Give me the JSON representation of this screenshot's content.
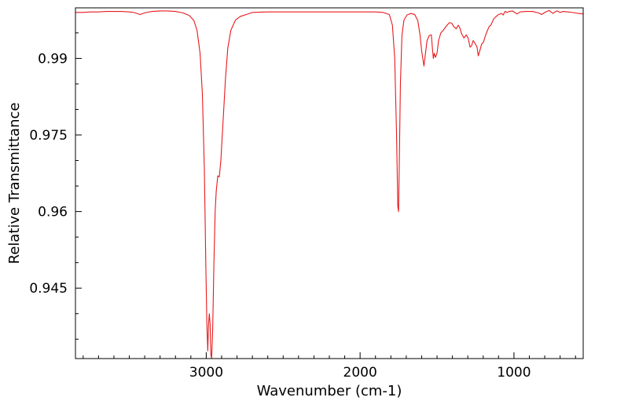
{
  "chart_data": {
    "type": "line",
    "title": "",
    "xlabel": "Wavenumber (cm-1)",
    "ylabel": "Relative Transmittance",
    "xlim": [
      3850,
      550
    ],
    "ylim": [
      0.9312,
      0.9999
    ],
    "x_axis_reversed": true,
    "grid": false,
    "legend": "none",
    "line_color": "#e8191c",
    "x_ticks": [
      {
        "value": 3000,
        "label": "3000"
      },
      {
        "value": 2000,
        "label": "2000"
      },
      {
        "value": 1000,
        "label": "1000"
      }
    ],
    "y_ticks": [
      {
        "value": 0.945,
        "label": "0.945"
      },
      {
        "value": 0.96,
        "label": "0.96"
      },
      {
        "value": 0.975,
        "label": "0.975"
      },
      {
        "value": 0.99,
        "label": "0.99"
      }
    ],
    "series": [
      {
        "color": "#e8191c",
        "points": [
          [
            3850,
            0.999
          ],
          [
            3800,
            0.999
          ],
          [
            3750,
            0.9991
          ],
          [
            3700,
            0.9991
          ],
          [
            3650,
            0.9992
          ],
          [
            3600,
            0.9992
          ],
          [
            3550,
            0.9992
          ],
          [
            3500,
            0.9991
          ],
          [
            3470,
            0.999
          ],
          [
            3450,
            0.9988
          ],
          [
            3430,
            0.9986
          ],
          [
            3410,
            0.9988
          ],
          [
            3390,
            0.999
          ],
          [
            3350,
            0.9992
          ],
          [
            3300,
            0.9993
          ],
          [
            3250,
            0.9993
          ],
          [
            3200,
            0.9992
          ],
          [
            3150,
            0.9989
          ],
          [
            3110,
            0.9984
          ],
          [
            3080,
            0.9974
          ],
          [
            3060,
            0.9955
          ],
          [
            3040,
            0.991
          ],
          [
            3025,
            0.983
          ],
          [
            3012,
            0.968
          ],
          [
            3003,
            0.95
          ],
          [
            2996,
            0.938
          ],
          [
            2990,
            0.9327
          ],
          [
            2985,
            0.938
          ],
          [
            2980,
            0.94
          ],
          [
            2975,
            0.938
          ],
          [
            2970,
            0.932
          ],
          [
            2965,
            0.9312
          ],
          [
            2958,
            0.937
          ],
          [
            2950,
            0.95
          ],
          [
            2942,
            0.96
          ],
          [
            2935,
            0.964
          ],
          [
            2925,
            0.967
          ],
          [
            2915,
            0.9668
          ],
          [
            2905,
            0.97
          ],
          [
            2890,
            0.978
          ],
          [
            2875,
            0.986
          ],
          [
            2860,
            0.992
          ],
          [
            2840,
            0.9955
          ],
          [
            2810,
            0.9975
          ],
          [
            2780,
            0.9982
          ],
          [
            2740,
            0.9986
          ],
          [
            2700,
            0.999
          ],
          [
            2600,
            0.9991
          ],
          [
            2500,
            0.9991
          ],
          [
            2400,
            0.9991
          ],
          [
            2300,
            0.9991
          ],
          [
            2200,
            0.9991
          ],
          [
            2100,
            0.9991
          ],
          [
            2000,
            0.9991
          ],
          [
            1900,
            0.9991
          ],
          [
            1850,
            0.999
          ],
          [
            1810,
            0.9986
          ],
          [
            1790,
            0.9965
          ],
          [
            1775,
            0.99
          ],
          [
            1763,
            0.975
          ],
          [
            1755,
            0.961
          ],
          [
            1750,
            0.96
          ],
          [
            1745,
            0.97
          ],
          [
            1738,
            0.985
          ],
          [
            1728,
            0.9945
          ],
          [
            1715,
            0.9975
          ],
          [
            1695,
            0.9985
          ],
          [
            1670,
            0.9988
          ],
          [
            1645,
            0.9986
          ],
          [
            1625,
            0.9974
          ],
          [
            1610,
            0.9945
          ],
          [
            1600,
            0.9915
          ],
          [
            1590,
            0.9895
          ],
          [
            1585,
            0.9885
          ],
          [
            1577,
            0.9905
          ],
          [
            1565,
            0.9935
          ],
          [
            1550,
            0.9945
          ],
          [
            1537,
            0.9946
          ],
          [
            1530,
            0.992
          ],
          [
            1524,
            0.99
          ],
          [
            1518,
            0.991
          ],
          [
            1510,
            0.9902
          ],
          [
            1500,
            0.991
          ],
          [
            1490,
            0.9935
          ],
          [
            1475,
            0.995
          ],
          [
            1460,
            0.9955
          ],
          [
            1440,
            0.9963
          ],
          [
            1420,
            0.997
          ],
          [
            1405,
            0.9969
          ],
          [
            1390,
            0.9962
          ],
          [
            1375,
            0.9958
          ],
          [
            1362,
            0.9965
          ],
          [
            1352,
            0.996
          ],
          [
            1340,
            0.9948
          ],
          [
            1325,
            0.994
          ],
          [
            1310,
            0.9946
          ],
          [
            1298,
            0.994
          ],
          [
            1285,
            0.9922
          ],
          [
            1275,
            0.9925
          ],
          [
            1265,
            0.9935
          ],
          [
            1250,
            0.9928
          ],
          [
            1240,
            0.9922
          ],
          [
            1232,
            0.9905
          ],
          [
            1222,
            0.9915
          ],
          [
            1210,
            0.9928
          ],
          [
            1198,
            0.9932
          ],
          [
            1185,
            0.9945
          ],
          [
            1172,
            0.9955
          ],
          [
            1160,
            0.9963
          ],
          [
            1150,
            0.9965
          ],
          [
            1140,
            0.9972
          ],
          [
            1130,
            0.9978
          ],
          [
            1120,
            0.9981
          ],
          [
            1100,
            0.9986
          ],
          [
            1080,
            0.9988
          ],
          [
            1070,
            0.9985
          ],
          [
            1065,
            0.9988
          ],
          [
            1058,
            0.9992
          ],
          [
            1045,
            0.999
          ],
          [
            1030,
            0.9992
          ],
          [
            1010,
            0.9993
          ],
          [
            990,
            0.9989
          ],
          [
            980,
            0.9987
          ],
          [
            960,
            0.9991
          ],
          [
            920,
            0.9992
          ],
          [
            880,
            0.9992
          ],
          [
            840,
            0.9989
          ],
          [
            820,
            0.9986
          ],
          [
            800,
            0.999
          ],
          [
            770,
            0.9994
          ],
          [
            760,
            0.9991
          ],
          [
            745,
            0.9988
          ],
          [
            735,
            0.9991
          ],
          [
            720,
            0.9993
          ],
          [
            700,
            0.999
          ],
          [
            680,
            0.9992
          ],
          [
            650,
            0.9991
          ],
          [
            620,
            0.999
          ],
          [
            600,
            0.9989
          ],
          [
            575,
            0.9988
          ],
          [
            550,
            0.9987
          ]
        ]
      }
    ]
  }
}
